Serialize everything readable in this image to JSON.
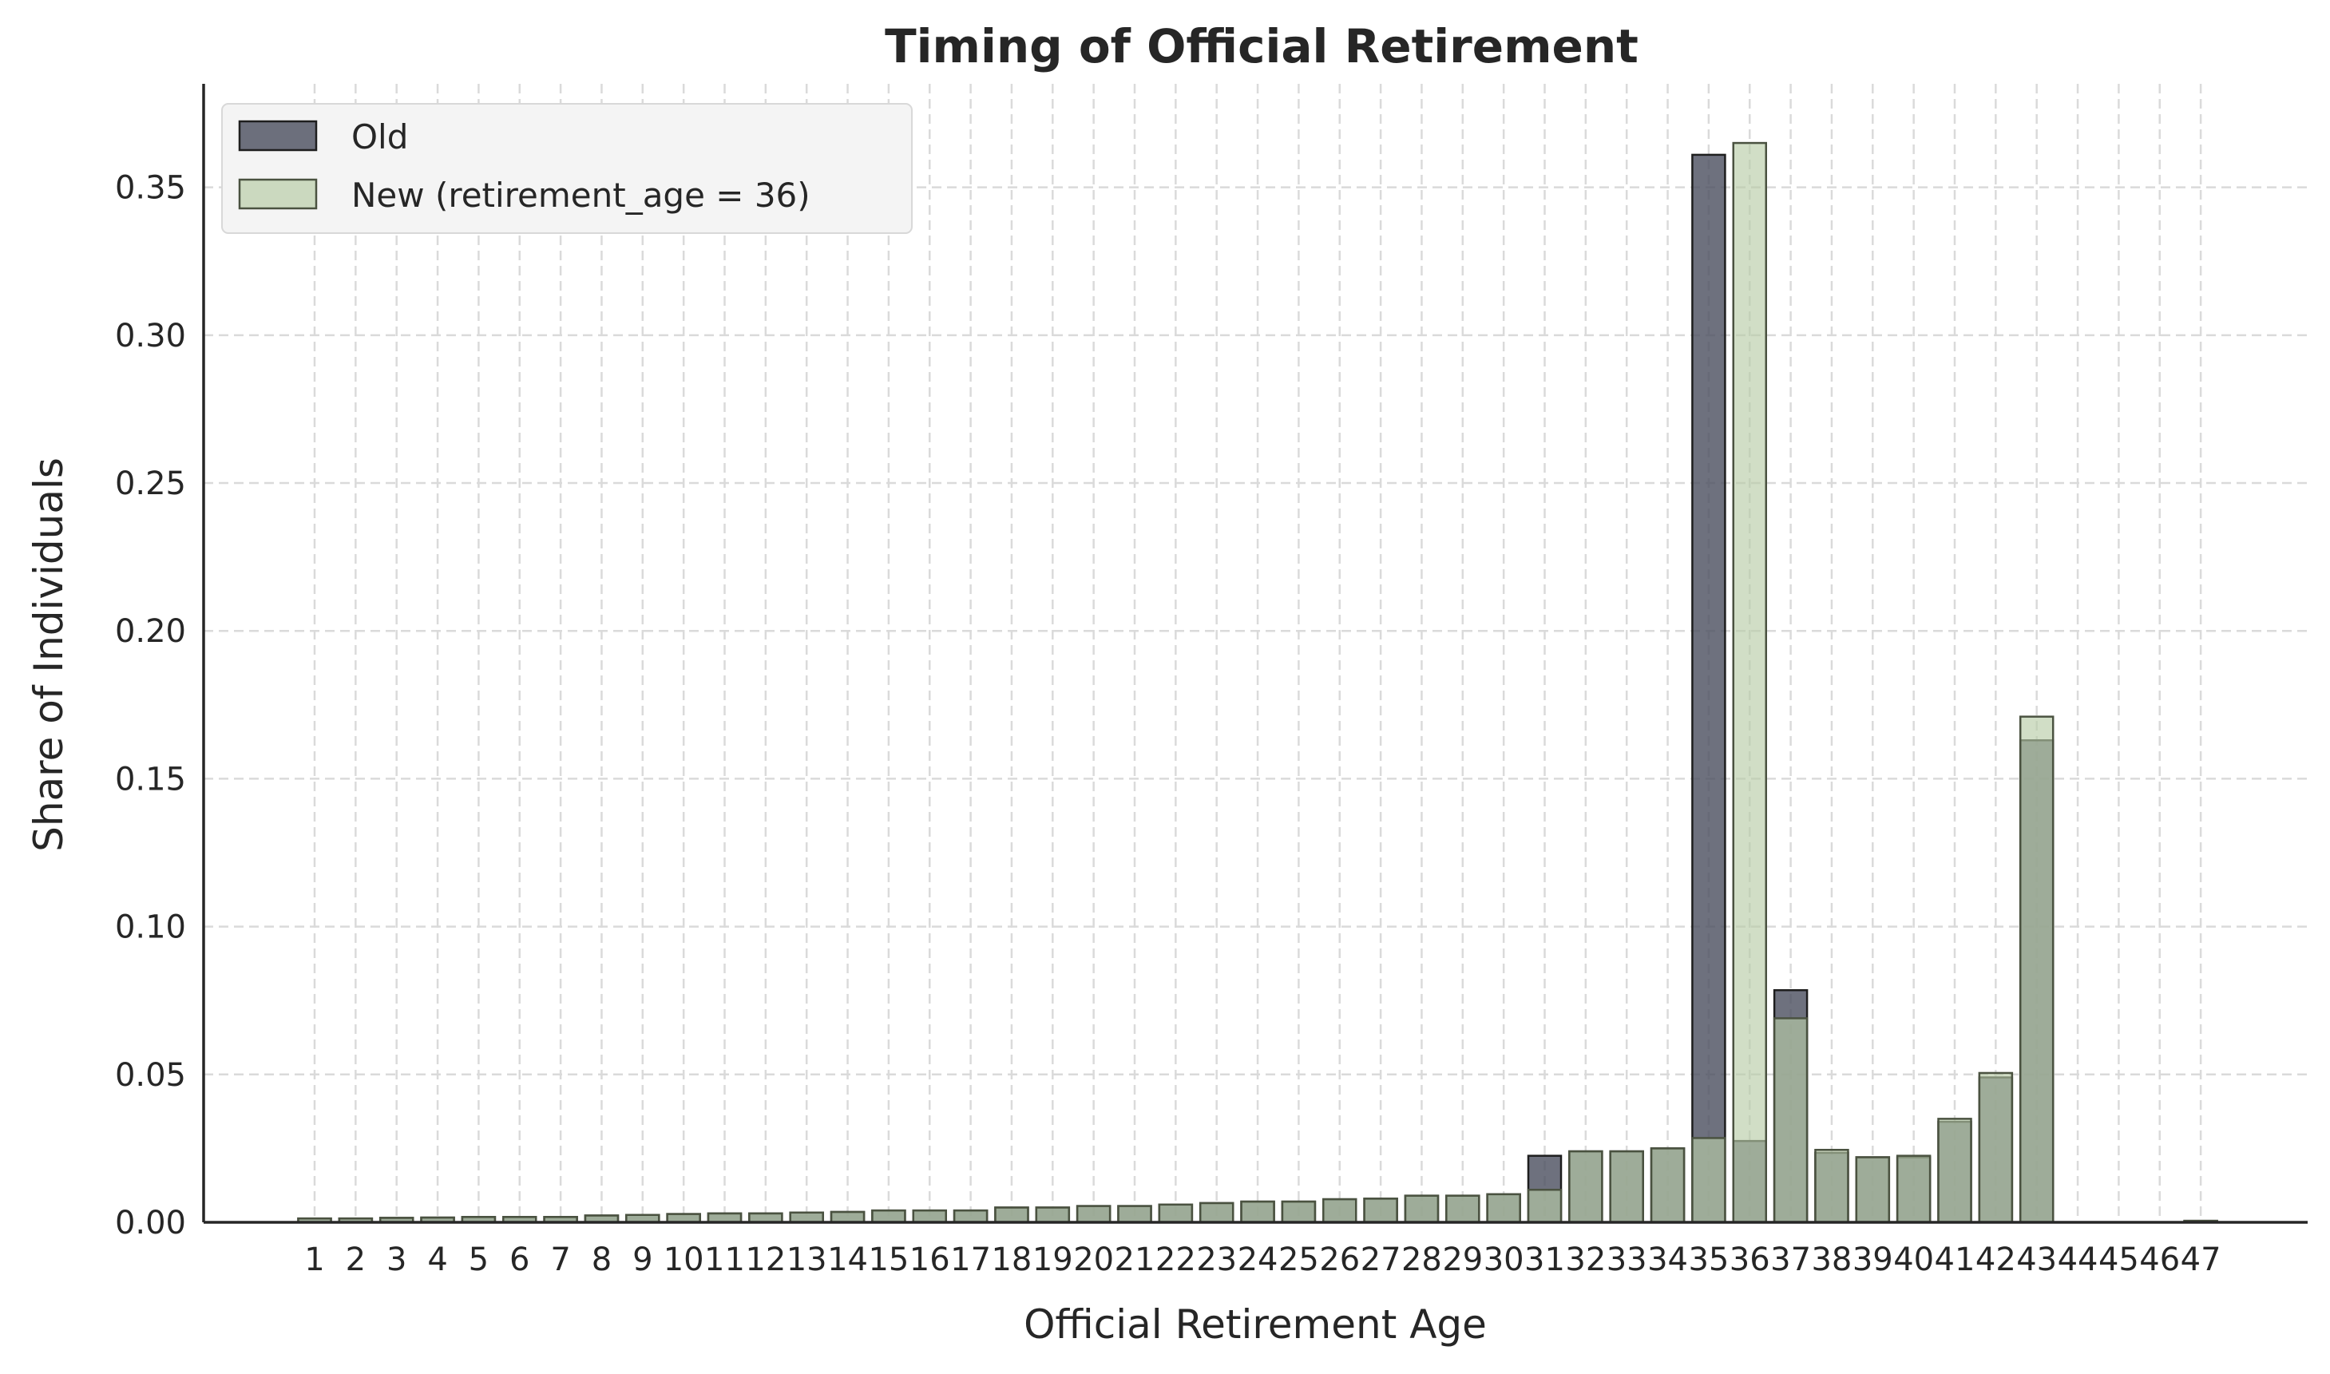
{
  "chart_data": {
    "type": "bar",
    "title": "Timing of Official Retirement",
    "xlabel": "Official Retirement Age",
    "ylabel": "Share of Individuals",
    "ylim": [
      0,
      0.385
    ],
    "yticks": [
      "0.00",
      "0.05",
      "0.10",
      "0.15",
      "0.20",
      "0.25",
      "0.30",
      "0.35"
    ],
    "categories": [
      "1",
      "2",
      "3",
      "4",
      "5",
      "6",
      "7",
      "8",
      "9",
      "10",
      "11",
      "12",
      "13",
      "14",
      "15",
      "16",
      "17",
      "18",
      "19",
      "20",
      "21",
      "22",
      "23",
      "24",
      "25",
      "26",
      "27",
      "28",
      "29",
      "30",
      "31",
      "32",
      "33",
      "34",
      "35",
      "36",
      "37",
      "38",
      "39",
      "40",
      "41",
      "42",
      "43",
      "44",
      "45",
      "46",
      "47"
    ],
    "series": [
      {
        "name": "Old",
        "color": "#4a4e5e",
        "values": [
          0.0013,
          0.0013,
          0.0015,
          0.0016,
          0.0018,
          0.0018,
          0.0018,
          0.0023,
          0.0025,
          0.0028,
          0.003,
          0.003,
          0.0033,
          0.0035,
          0.004,
          0.004,
          0.004,
          0.005,
          0.005,
          0.0055,
          0.0055,
          0.006,
          0.0065,
          0.007,
          0.007,
          0.0078,
          0.008,
          0.009,
          0.009,
          0.0095,
          0.0225,
          0.024,
          0.024,
          0.025,
          0.361,
          0.0275,
          0.0785,
          0.0235,
          0.022,
          0.022,
          0.034,
          0.049,
          0.163,
          0,
          0,
          0,
          0.0005
        ]
      },
      {
        "name": "New (retirement_age = 36)",
        "color": "#b9cda8",
        "values": [
          0.0013,
          0.0013,
          0.0015,
          0.0016,
          0.0018,
          0.0018,
          0.0018,
          0.0023,
          0.0025,
          0.0028,
          0.003,
          0.003,
          0.0033,
          0.0035,
          0.004,
          0.004,
          0.004,
          0.005,
          0.005,
          0.0055,
          0.0055,
          0.006,
          0.0065,
          0.007,
          0.007,
          0.0078,
          0.008,
          0.009,
          0.009,
          0.0095,
          0.011,
          0.024,
          0.024,
          0.025,
          0.0285,
          0.365,
          0.069,
          0.0245,
          0.022,
          0.0225,
          0.035,
          0.0505,
          0.171,
          0,
          0,
          0,
          0.0005
        ]
      }
    ],
    "grid": true,
    "legend_position": "top-left"
  }
}
